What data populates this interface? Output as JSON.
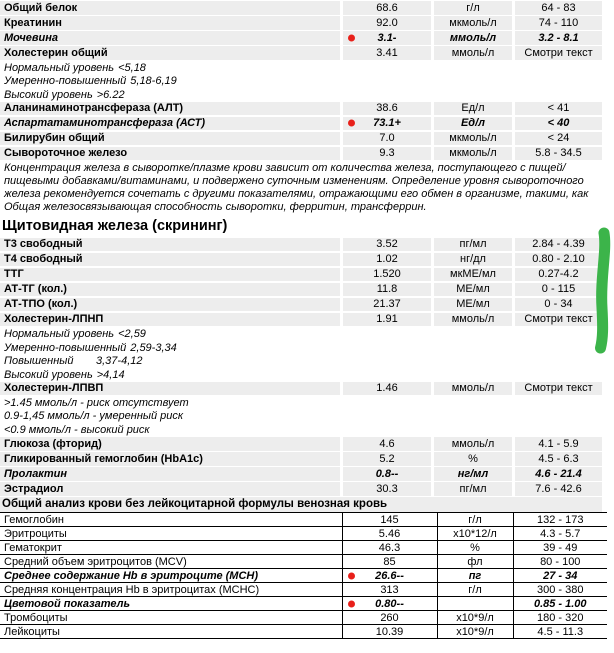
{
  "colors": {
    "row_bg": "#ededed",
    "abnormal_red": "#e8201a",
    "marker_green": "#3cb44a",
    "table_border": "#000000"
  },
  "blocks": [
    {
      "kind": "rows",
      "items": [
        {
          "name": "Общий белок",
          "result": "68.6",
          "unit": "г/л",
          "range": "64 - 83",
          "abnormal": false,
          "dot": false
        },
        {
          "name": "Креатинин",
          "result": "92.0",
          "unit": "мкмоль/л",
          "range": "74 - 110",
          "abnormal": false,
          "dot": false
        },
        {
          "name": "Мочевина",
          "result": "3.1-",
          "unit": "ммоль/л",
          "range": "3.2 - 8.1",
          "abnormal": true,
          "dot": true
        },
        {
          "name": "Холестерин общий",
          "result": "3.41",
          "unit": "ммоль/л",
          "range": "Смотри текст",
          "abnormal": false,
          "dot": false
        }
      ]
    },
    {
      "kind": "sublines",
      "items": [
        {
          "label": "Нормальный уровень",
          "value": "<5,18"
        },
        {
          "label": "Умеренно-повышенный",
          "value": "5,18-6,19"
        },
        {
          "label": "Высокий уровень",
          "value": ">6.22"
        }
      ]
    },
    {
      "kind": "rows",
      "items": [
        {
          "name": "Аланинаминотрансфераза (АЛТ)",
          "result": "38.6",
          "unit": "Ед/л",
          "range": "< 41",
          "abnormal": false,
          "dot": false
        },
        {
          "name": "Аспартатаминотрансфераза (АСТ)",
          "result": "73.1+",
          "unit": "Ед/л",
          "range": "< 40",
          "abnormal": true,
          "dot": true
        },
        {
          "name": "Билирубин общий",
          "result": "7.0",
          "unit": "мкмоль/л",
          "range": "< 24",
          "abnormal": false,
          "dot": false
        },
        {
          "name": "Сывороточное железо",
          "result": "9.3",
          "unit": "мкмоль/л",
          "range": "5.8 - 34.5",
          "abnormal": false,
          "dot": false
        }
      ]
    },
    {
      "kind": "note",
      "text": "Концентрация железа в сыворотке/плазме крови зависит от количества железа, поступающего с пищей/пищевыми добавками/витаминами, и подвержено суточным изменениям. Определение уровня сывороточного железа рекомендуется сочетать с другими показателями, отражающими его обмен в организме, такими, как Общая железосвязывающая способность сыворотки, ферритин, трансферрин."
    },
    {
      "kind": "header1",
      "text": "Щитовидная железа (скрининг)"
    },
    {
      "kind": "rows",
      "items": [
        {
          "name": "Т3 свободный",
          "result": "3.52",
          "unit": "пг/мл",
          "range": "2.84 - 4.39",
          "abnormal": false,
          "dot": false
        },
        {
          "name": "Т4 свободный",
          "result": "1.02",
          "unit": "нг/дл",
          "range": "0.80 - 2.10",
          "abnormal": false,
          "dot": false
        },
        {
          "name": "ТТГ",
          "result": "1.520",
          "unit": "мкМЕ/мл",
          "range": "0.27-4.2",
          "abnormal": false,
          "dot": false
        },
        {
          "name": "АТ-ТГ (кол.)",
          "result": "11.8",
          "unit": "МЕ/мл",
          "range": "0 - 115",
          "abnormal": false,
          "dot": false
        },
        {
          "name": "АТ-ТПО (кол.)",
          "result": "21.37",
          "unit": "МЕ/мл",
          "range": "0 - 34",
          "abnormal": false,
          "dot": false
        },
        {
          "name": "Холестерин-ЛПНП",
          "result": "1.91",
          "unit": "ммоль/л",
          "range": "Смотри текст",
          "abnormal": false,
          "dot": false
        }
      ]
    },
    {
      "kind": "sublines",
      "items": [
        {
          "label": "Нормальный уровень",
          "value": "<2,59"
        },
        {
          "label": "Умеренно-повышенный",
          "value": "2,59-3,34"
        },
        {
          "label": "Повышенный",
          "value": "3,37-4,12"
        },
        {
          "label": "Высокий уровень",
          "value": ">4,14"
        }
      ]
    },
    {
      "kind": "rows",
      "items": [
        {
          "name": "Холестерин-ЛПВП",
          "result": "1.46",
          "unit": "ммоль/л",
          "range": "Смотри текст",
          "abnormal": false,
          "dot": false
        }
      ]
    },
    {
      "kind": "plainlines",
      "items": [
        ">1.45 ммоль/л - риск отсутствует",
        "0.9-1,45 ммоль/л - умеренный риск",
        "<0.9 ммоль/л - высокий риск"
      ]
    },
    {
      "kind": "rows",
      "items": [
        {
          "name": "Глюкоза (фторид)",
          "result": "4.6",
          "unit": "ммоль/л",
          "range": "4.1 - 5.9",
          "abnormal": false,
          "dot": false
        },
        {
          "name": "Гликированный гемоглобин (HbA1c)",
          "result": "5.2",
          "unit": "%",
          "range": "4.5 - 6.3",
          "abnormal": false,
          "dot": false
        },
        {
          "name": "Пролактин",
          "result": "0.8--",
          "unit": "нг/мл",
          "range": "4.6 - 21.4",
          "abnormal": true,
          "dot": false
        },
        {
          "name": "Эстрадиол",
          "result": "30.3",
          "unit": "пг/мл",
          "range": "7.6 - 42.6",
          "abnormal": false,
          "dot": false
        }
      ]
    },
    {
      "kind": "header2",
      "text": "Общий анализ крови без лейкоцитарной формулы венозная кровь"
    },
    {
      "kind": "bordered",
      "items": [
        {
          "name": "Гемоглобин",
          "result": "145",
          "unit": "г/л",
          "range": "132 - 173",
          "abnormal": false,
          "dot": false
        },
        {
          "name": "Эритроциты",
          "result": "5.46",
          "unit": "х10*12/л",
          "range": "4.3 - 5.7",
          "abnormal": false,
          "dot": false
        },
        {
          "name": "Гематокрит",
          "result": "46.3",
          "unit": "%",
          "range": "39 - 49",
          "abnormal": false,
          "dot": false
        },
        {
          "name": "Средний объем эритроцитов (MCV)",
          "result": "85",
          "unit": "фл",
          "range": "80 - 100",
          "abnormal": false,
          "dot": false
        },
        {
          "name": "Среднее содержание Hb в эритроците (MCH)",
          "result": "26.6--",
          "unit": "пг",
          "range": "27 - 34",
          "abnormal": true,
          "dot": true
        },
        {
          "name": "Средняя концентрация Hb в эритроцитах (MCHC)",
          "result": "313",
          "unit": "г/л",
          "range": "300 - 380",
          "abnormal": false,
          "dot": false
        },
        {
          "name": "Цветовой показатель",
          "result": "0.80--",
          "unit": "",
          "range": "0.85 - 1.00",
          "abnormal": true,
          "dot": true
        },
        {
          "name": "Тромбоциты",
          "result": "260",
          "unit": "х10*9/л",
          "range": "180 - 320",
          "abnormal": false,
          "dot": false
        },
        {
          "name": "Лейкоциты",
          "result": "10.39",
          "unit": "х10*9/л",
          "range": "4.5 - 11.3",
          "abnormal": false,
          "dot": false
        }
      ]
    }
  ],
  "annotation": {
    "green_marker_note": "vertical hand-drawn highlight beside thyroid panel rows"
  }
}
